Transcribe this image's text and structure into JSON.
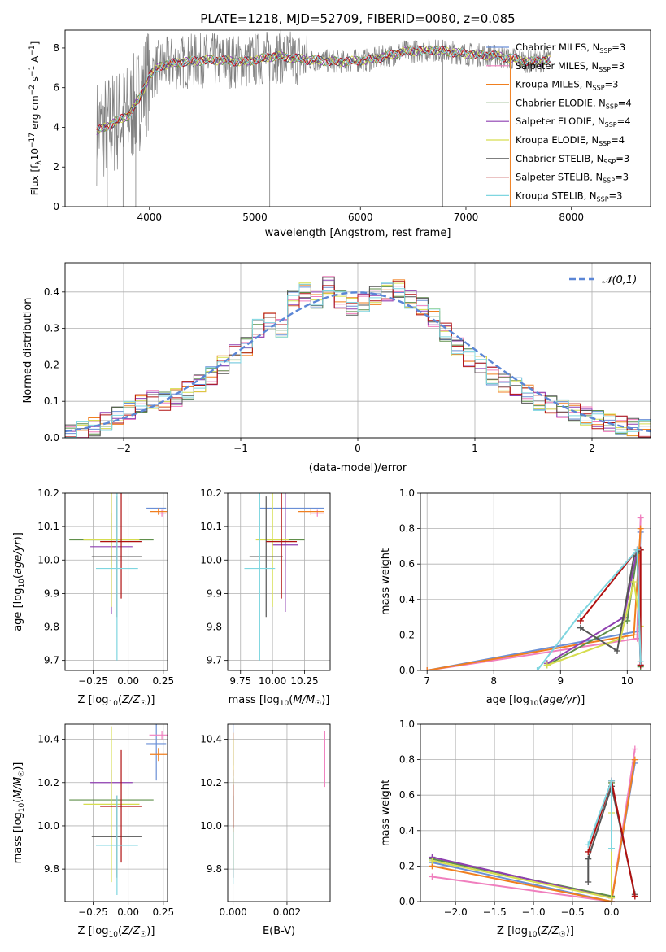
{
  "title": "PLATE=1218, MJD=52709, FIBERID=0080, z=0.085",
  "colors": {
    "Chabrier MILES": "#6a8fd6",
    "Salpeter MILES": "#f07fbe",
    "Kroupa MILES": "#f07f1f",
    "Chabrier ELODIE": "#5f8f4a",
    "Salpeter ELODIE": "#8e3fb0",
    "Kroupa ELODIE": "#d6dd4f",
    "Chabrier STELIB": "#555555",
    "Salpeter STELIB": "#b01010",
    "Kroupa STELIB": "#7fd6e0",
    "data": "#808080",
    "normal": "#5b86d6",
    "grid": "#b0b0b0"
  },
  "chart_data": [
    {
      "id": "spectrum",
      "type": "line",
      "xlabel": "wavelength [Angstrom, rest frame]",
      "ylabel": "Flux [f_λ 10^-17 erg cm^-2 s^-1 A^-1]",
      "xlim": [
        3200,
        8750
      ],
      "ylim": [
        0,
        8.9
      ],
      "xticks": [
        4000,
        5000,
        6000,
        7000,
        8000
      ],
      "yticks": [
        0,
        2,
        4,
        6,
        8
      ],
      "grid": false,
      "legend_position": "right",
      "legend": [
        "Chabrier MILES, N_SSP=3",
        "Salpeter MILES, N_SSP=3",
        "Kroupa MILES, N_SSP=3",
        "Chabrier ELODIE, N_SSP=4",
        "Salpeter ELODIE, N_SSP=4",
        "Kroupa ELODIE, N_SSP=4",
        "Chabrier STELIB, N_SSP=3",
        "Salpeter STELIB, N_SSP=3",
        "Kroupa STELIB, N_SSP=3"
      ],
      "continuum": {
        "x": [
          3500,
          3650,
          3800,
          3900,
          4000,
          4100,
          4300,
          4600,
          4900,
          5200,
          5500,
          5800,
          6100,
          6400,
          6700,
          7000,
          7300,
          7600,
          7800
        ],
        "y": [
          3.8,
          4.2,
          4.6,
          5.4,
          6.6,
          7.1,
          7.3,
          7.4,
          7.3,
          7.6,
          7.4,
          7.3,
          7.4,
          7.8,
          7.9,
          7.7,
          7.6,
          7.3,
          7.4
        ]
      }
    },
    {
      "id": "residuals",
      "type": "histogram",
      "xlabel": "(data-model)/error",
      "ylabel": "Normed distribution",
      "xlim": [
        -2.5,
        2.5
      ],
      "ylim": [
        0,
        0.48
      ],
      "xticks": [
        -2,
        -1,
        0,
        1,
        2
      ],
      "yticks": [
        0.0,
        0.1,
        0.2,
        0.3,
        0.4
      ],
      "grid": true,
      "legend": "𝒩(0,1)",
      "legend_position": "top-right",
      "bin_centers": [
        -2.45,
        -2.35,
        -2.25,
        -2.15,
        -2.05,
        -1.95,
        -1.85,
        -1.75,
        -1.65,
        -1.55,
        -1.45,
        -1.35,
        -1.25,
        -1.15,
        -1.05,
        -0.95,
        -0.85,
        -0.75,
        -0.65,
        -0.55,
        -0.45,
        -0.35,
        -0.25,
        -0.15,
        -0.05,
        0.05,
        0.15,
        0.25,
        0.35,
        0.45,
        0.55,
        0.65,
        0.75,
        0.85,
        0.95,
        1.05,
        1.15,
        1.25,
        1.35,
        1.45,
        1.55,
        1.65,
        1.75,
        1.85,
        1.95,
        2.05,
        2.15,
        2.25,
        2.35,
        2.45
      ],
      "hist_values": [
        0.012,
        0.02,
        0.03,
        0.045,
        0.06,
        0.075,
        0.095,
        0.105,
        0.1,
        0.11,
        0.13,
        0.15,
        0.17,
        0.2,
        0.23,
        0.25,
        0.3,
        0.32,
        0.3,
        0.38,
        0.4,
        0.38,
        0.42,
        0.38,
        0.36,
        0.37,
        0.39,
        0.4,
        0.41,
        0.38,
        0.36,
        0.33,
        0.29,
        0.25,
        0.22,
        0.2,
        0.17,
        0.15,
        0.14,
        0.12,
        0.1,
        0.09,
        0.08,
        0.07,
        0.06,
        0.05,
        0.04,
        0.035,
        0.03,
        0.025
      ]
    },
    {
      "id": "age_vs_Z",
      "type": "errorbar",
      "xlabel": "Z [log10(Z/Z☉)]",
      "ylabel": "age [log10(age/yr)]",
      "xlim": [
        -0.45,
        0.28
      ],
      "ylim": [
        9.67,
        10.2
      ],
      "xticks": [
        -0.25,
        0.0,
        0.25
      ],
      "xticklabels": [
        "−0.25",
        "0.00",
        "0.25"
      ],
      "yticks": [
        9.7,
        9.8,
        9.9,
        10.0,
        10.1,
        10.2
      ],
      "grid": true,
      "points": [
        {
          "model": "Chabrier MILES",
          "x": 0.2,
          "y": 10.155,
          "xerr": 0.07,
          "yerr": 0.0
        },
        {
          "model": "Salpeter MILES",
          "x": 0.24,
          "y": 10.14,
          "xerr": 0.03,
          "yerr": 0.01
        },
        {
          "model": "Kroupa MILES",
          "x": 0.215,
          "y": 10.145,
          "xerr": 0.06,
          "yerr": 0.01
        },
        {
          "model": "Chabrier ELODIE",
          "x": -0.12,
          "y": 10.06,
          "xerr": 0.3,
          "yerr": 0.08
        },
        {
          "model": "Salpeter ELODIE",
          "x": -0.12,
          "y": 10.04,
          "xerr": 0.15,
          "yerr": 0.2
        },
        {
          "model": "Kroupa ELODIE",
          "x": -0.12,
          "y": 10.06,
          "xerr": 0.2,
          "yerr": 0.2
        },
        {
          "model": "Chabrier STELIB",
          "x": -0.08,
          "y": 10.01,
          "xerr": 0.18,
          "yerr": 0.18
        },
        {
          "model": "Salpeter STELIB",
          "x": -0.05,
          "y": 10.055,
          "xerr": 0.15,
          "yerr": 0.17
        },
        {
          "model": "Kroupa STELIB",
          "x": -0.08,
          "y": 9.975,
          "xerr": 0.15,
          "yerr": 0.275
        }
      ]
    },
    {
      "id": "age_vs_mass",
      "type": "errorbar",
      "xlabel": "mass [log10(M/M☉)]",
      "ylabel": "",
      "xlim": [
        9.65,
        10.45
      ],
      "ylim": [
        9.67,
        10.2
      ],
      "xticks": [
        9.75,
        10.0,
        10.25
      ],
      "xticklabels": [
        "9.75",
        "10.00",
        "10.25"
      ],
      "yticks": [
        9.7,
        9.8,
        9.9,
        10.0,
        10.1,
        10.2
      ],
      "grid": true,
      "points": [
        {
          "model": "Chabrier MILES",
          "x": 10.15,
          "y": 10.155,
          "xerr": 0.25,
          "yerr": 0.0
        },
        {
          "model": "Salpeter MILES",
          "x": 10.35,
          "y": 10.14,
          "xerr": 0.05,
          "yerr": 0.01
        },
        {
          "model": "Kroupa MILES",
          "x": 10.3,
          "y": 10.145,
          "xerr": 0.1,
          "yerr": 0.01
        },
        {
          "model": "Chabrier ELODIE",
          "x": 10.1,
          "y": 10.06,
          "xerr": 0.15,
          "yerr": 0.08
        },
        {
          "model": "Salpeter ELODIE",
          "x": 10.1,
          "y": 10.045,
          "xerr": 0.1,
          "yerr": 0.2
        },
        {
          "model": "Kroupa ELODIE",
          "x": 10.0,
          "y": 10.06,
          "xerr": 0.13,
          "yerr": 0.2
        },
        {
          "model": "Chabrier STELIB",
          "x": 9.95,
          "y": 10.01,
          "xerr": 0.13,
          "yerr": 0.18
        },
        {
          "model": "Salpeter STELIB",
          "x": 10.07,
          "y": 10.055,
          "xerr": 0.12,
          "yerr": 0.17
        },
        {
          "model": "Kroupa STELIB",
          "x": 9.9,
          "y": 9.975,
          "xerr": 0.12,
          "yerr": 0.275
        }
      ]
    },
    {
      "id": "massweight_vs_age",
      "type": "line",
      "xlabel": "age [log10(age/yr)]",
      "ylabel": "mass weight",
      "xlim": [
        6.9,
        10.35
      ],
      "ylim": [
        0,
        1.0
      ],
      "xticks": [
        7,
        8,
        9,
        10
      ],
      "yticks": [
        0.0,
        0.2,
        0.4,
        0.6,
        0.8,
        1.0
      ],
      "grid": true,
      "series": [
        {
          "name": "Chabrier MILES",
          "x": [
            7.0,
            10.15,
            10.2
          ],
          "y": [
            0.0,
            0.22,
            0.78
          ]
        },
        {
          "name": "Salpeter MILES",
          "x": [
            7.0,
            10.15,
            10.2
          ],
          "y": [
            0.0,
            0.18,
            0.86
          ]
        },
        {
          "name": "Kroupa MILES",
          "x": [
            7.0,
            10.1,
            10.2
          ],
          "y": [
            0.0,
            0.2,
            0.8
          ]
        },
        {
          "name": "Chabrier ELODIE",
          "x": [
            8.8,
            10.0,
            10.15,
            10.2
          ],
          "y": [
            0.03,
            0.28,
            0.66,
            0.02
          ]
        },
        {
          "name": "Salpeter ELODIE",
          "x": [
            8.8,
            9.95,
            10.15,
            10.2
          ],
          "y": [
            0.04,
            0.3,
            0.68,
            0.03
          ]
        },
        {
          "name": "Kroupa ELODIE",
          "x": [
            8.8,
            9.9,
            10.1,
            10.2
          ],
          "y": [
            0.03,
            0.18,
            0.5,
            0.25
          ]
        },
        {
          "name": "Chabrier STELIB",
          "x": [
            9.3,
            9.85,
            10.1,
            10.2
          ],
          "y": [
            0.24,
            0.11,
            0.64,
            0.68
          ]
        },
        {
          "name": "Salpeter STELIB",
          "x": [
            9.3,
            10.15,
            10.2,
            10.2
          ],
          "y": [
            0.28,
            0.68,
            0.68,
            0.03
          ]
        },
        {
          "name": "Kroupa STELIB",
          "x": [
            8.65,
            9.3,
            10.15,
            10.2
          ],
          "y": [
            0.0,
            0.32,
            0.68,
            0.05
          ]
        }
      ]
    },
    {
      "id": "mass_vs_Z",
      "type": "errorbar",
      "xlabel": "Z [log10(Z/Z☉)]",
      "ylabel": "mass [log10(M/M☉)]",
      "xlim": [
        -0.45,
        0.28
      ],
      "ylim": [
        9.65,
        10.47
      ],
      "xticks": [
        -0.25,
        0.0,
        0.25
      ],
      "xticklabels": [
        "−0.25",
        "0.00",
        "0.25"
      ],
      "yticks": [
        9.8,
        10.0,
        10.2,
        10.4
      ],
      "grid": true,
      "points": [
        {
          "model": "Chabrier MILES",
          "x": 0.2,
          "y": 10.38,
          "xerr": 0.07,
          "yerr": 0.17
        },
        {
          "model": "Salpeter MILES",
          "x": 0.24,
          "y": 10.42,
          "xerr": 0.09,
          "yerr": 0.02
        },
        {
          "model": "Kroupa MILES",
          "x": 0.215,
          "y": 10.33,
          "xerr": 0.06,
          "yerr": 0.03
        },
        {
          "model": "Chabrier ELODIE",
          "x": -0.12,
          "y": 10.12,
          "xerr": 0.3,
          "yerr": 0.02
        },
        {
          "model": "Salpeter ELODIE",
          "x": -0.12,
          "y": 10.2,
          "xerr": 0.15,
          "yerr": 0.06
        },
        {
          "model": "Kroupa ELODIE",
          "x": -0.12,
          "y": 10.1,
          "xerr": 0.2,
          "yerr": 0.36
        },
        {
          "model": "Chabrier STELIB",
          "x": -0.08,
          "y": 9.95,
          "xerr": 0.18,
          "yerr": 0.19
        },
        {
          "model": "Salpeter STELIB",
          "x": -0.05,
          "y": 10.09,
          "xerr": 0.15,
          "yerr": 0.26
        },
        {
          "model": "Kroupa STELIB",
          "x": -0.08,
          "y": 9.91,
          "xerr": 0.15,
          "yerr": 0.23
        }
      ]
    },
    {
      "id": "mass_vs_EBV",
      "type": "errorbar",
      "xlabel": "E(B-V)",
      "ylabel": "",
      "xlim": [
        -0.0002,
        0.0036
      ],
      "ylim": [
        9.65,
        10.47
      ],
      "xticks": [
        0.0,
        0.002
      ],
      "xticklabels": [
        "0.000",
        "0.002"
      ],
      "yticks": [
        9.8,
        10.0,
        10.2,
        10.4
      ],
      "grid": true,
      "points": [
        {
          "model": "Chabrier MILES",
          "x": 0.0,
          "y": 10.38,
          "xerr": 0.0,
          "yerr": 0.1
        },
        {
          "model": "Salpeter MILES",
          "x": 0.0034,
          "y": 10.31,
          "xerr": 0.0,
          "yerr": 0.13
        },
        {
          "model": "Kroupa MILES",
          "x": 0.0,
          "y": 10.33,
          "xerr": 0.0,
          "yerr": 0.1
        },
        {
          "model": "Chabrier ELODIE",
          "x": 0.0,
          "y": 10.12,
          "xerr": 0.0,
          "yerr": 0.1
        },
        {
          "model": "Salpeter ELODIE",
          "x": 0.0,
          "y": 10.2,
          "xerr": 0.0,
          "yerr": 0.06
        },
        {
          "model": "Kroupa ELODIE",
          "x": 0.0,
          "y": 10.1,
          "xerr": 0.0,
          "yerr": 0.3
        },
        {
          "model": "Chabrier STELIB",
          "x": 0.0,
          "y": 9.95,
          "xerr": 0.0,
          "yerr": 0.19
        },
        {
          "model": "Salpeter STELIB",
          "x": 0.0,
          "y": 10.09,
          "xerr": 0.0,
          "yerr": 0.1
        },
        {
          "model": "Kroupa STELIB",
          "x": 0.0,
          "y": 9.85,
          "xerr": 0.0,
          "yerr": 0.12
        }
      ]
    },
    {
      "id": "massweight_vs_Z",
      "type": "line",
      "xlabel": "Z [log10(Z/Z☉)]",
      "ylabel": "mass weight",
      "xlim": [
        -2.45,
        0.5
      ],
      "ylim": [
        0,
        1.0
      ],
      "xticks": [
        -2.0,
        -1.5,
        -1.0,
        -0.5,
        0.0
      ],
      "xticklabels": [
        "−2.0",
        "−1.5",
        "−1.0",
        "−0.5",
        "0.0"
      ],
      "yticks": [
        0.0,
        0.2,
        0.4,
        0.6,
        0.8,
        1.0
      ],
      "grid": true,
      "series": [
        {
          "name": "Chabrier MILES",
          "x": [
            -2.3,
            0.0,
            0.3
          ],
          "y": [
            0.22,
            0.0,
            0.78
          ]
        },
        {
          "name": "Salpeter MILES",
          "x": [
            -2.3,
            0.0,
            0.3
          ],
          "y": [
            0.14,
            0.0,
            0.86
          ]
        },
        {
          "name": "Kroupa MILES",
          "x": [
            -2.3,
            0.0,
            0.3
          ],
          "y": [
            0.2,
            0.0,
            0.8
          ]
        },
        {
          "name": "Chabrier ELODIE",
          "x": [
            -2.3,
            0.0,
            0.0
          ],
          "y": [
            0.24,
            0.03,
            0.67
          ]
        },
        {
          "name": "Salpeter ELODIE",
          "x": [
            -2.3,
            0.0,
            0.0
          ],
          "y": [
            0.25,
            0.02,
            0.68
          ]
        },
        {
          "name": "Kroupa ELODIE",
          "x": [
            -2.3,
            0.0,
            0.0
          ],
          "y": [
            0.23,
            0.02,
            0.5
          ]
        },
        {
          "name": "Chabrier STELIB",
          "x": [
            -0.3,
            -0.3,
            0.0,
            0.3
          ],
          "y": [
            0.11,
            0.24,
            0.65,
            0.04
          ]
        },
        {
          "name": "Salpeter STELIB",
          "x": [
            -0.3,
            0.0,
            0.3
          ],
          "y": [
            0.28,
            0.68,
            0.03
          ]
        },
        {
          "name": "Kroupa STELIB",
          "x": [
            -0.3,
            0.0,
            0.0
          ],
          "y": [
            0.32,
            0.68,
            0.3
          ]
        }
      ]
    }
  ]
}
